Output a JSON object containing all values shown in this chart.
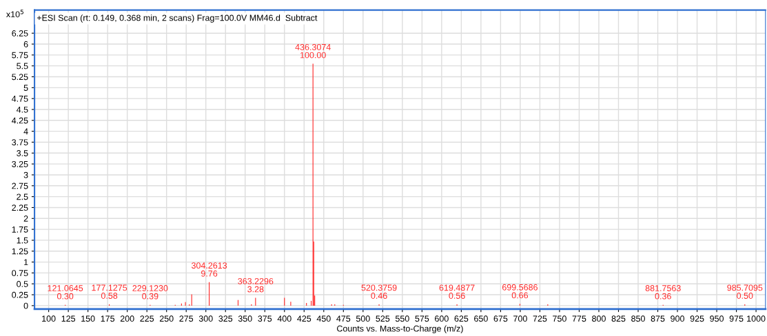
{
  "chart_data": {
    "type": "bar",
    "title": "+ESI Scan (rt: 0.149, 0.368 min, 2 scans) Frag=100.0V MM46.d  Subtract",
    "ylabel": "x10$^{5}$",
    "xlabel": "Counts vs. Mass-to-Charge (m/z)",
    "x": [
      121.0645,
      177.1275,
      229.123,
      261,
      269,
      274,
      279,
      282,
      304.2613,
      341,
      358,
      363.2296,
      400,
      408,
      428,
      434,
      436.3074,
      437.3,
      438.5,
      460,
      464,
      475,
      520.3759,
      619.4877,
      699.5686,
      735,
      881.7563,
      985.7095
    ],
    "series": [
      {
        "color": "#ff2a2a",
        "values": [
          0.02,
          0.03,
          0.02,
          0.02,
          0.05,
          0.08,
          0.03,
          0.26,
          0.54,
          0.13,
          0.03,
          0.18,
          0.18,
          0.09,
          0.06,
          0.11,
          5.55,
          1.47,
          0.23,
          0.03,
          0.03,
          0.02,
          0.03,
          0.03,
          0.04,
          0.03,
          0.02,
          0.03
        ]
      }
    ],
    "annotations": [
      {
        "text": "121.0645\n0.30",
        "x": 121.0645,
        "y": 0.02
      },
      {
        "text": "177.1275\n0.58",
        "x": 177.1275,
        "y": 0.03
      },
      {
        "text": "229.1230\n0.39",
        "x": 229.123,
        "y": 0.02
      },
      {
        "text": "304.2613\n9.76",
        "x": 304.2613,
        "y": 0.54
      },
      {
        "text": "363.2296\n3.28",
        "x": 363.2296,
        "y": 0.18
      },
      {
        "text": "436.3074\n100.00",
        "x": 436.3074,
        "y": 5.55
      },
      {
        "text": "520.3759\n0.46",
        "x": 520.3759,
        "y": 0.03
      },
      {
        "text": "619.4877\n0.56",
        "x": 619.4877,
        "y": 0.03
      },
      {
        "text": "699.5686\n0.66",
        "x": 699.5686,
        "y": 0.04
      },
      {
        "text": "881.7563\n0.36",
        "x": 881.7563,
        "y": 0.02
      },
      {
        "text": "985.7095\n0.50",
        "x": 985.7095,
        "y": 0.03
      }
    ],
    "xlim": [
      82,
      1012
    ],
    "ylim": [
      -0.08,
      6.78
    ],
    "xticks": [
      100,
      125,
      150,
      175,
      200,
      225,
      250,
      275,
      300,
      325,
      350,
      375,
      400,
      425,
      450,
      475,
      500,
      525,
      550,
      575,
      600,
      625,
      650,
      675,
      700,
      725,
      750,
      775,
      800,
      825,
      850,
      875,
      900,
      925,
      950,
      975,
      1000
    ],
    "yticks": [
      0,
      0.25,
      0.5,
      0.75,
      1,
      1.25,
      1.5,
      1.75,
      2,
      2.25,
      2.5,
      2.75,
      3,
      3.25,
      3.5,
      3.75,
      4,
      4.25,
      4.5,
      4.75,
      5,
      5.25,
      5.5,
      5.75,
      6,
      6.25
    ],
    "grid": true,
    "legend": false
  }
}
